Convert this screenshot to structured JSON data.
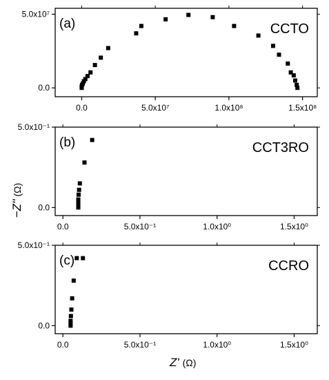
{
  "chart_data": [
    {
      "type": "scatter",
      "panel_label": "(a)",
      "series": [
        {
          "name": "CCTO",
          "x": [
            0.0,
            0.0,
            300000.0,
            800000.0,
            1500000.0,
            2500000.0,
            4000000.0,
            6000000.0,
            9000000.0,
            13000000.0,
            18000000.0,
            37000000.0,
            40500000.0,
            57000000.0,
            72500000.0,
            89000000.0,
            103500000.0,
            120000000.0,
            130000000.0,
            134000000.0,
            140000000.0,
            142000000.0,
            144000000.0,
            145000000.0,
            146000000.0,
            146500000.0
          ],
          "y": [
            0.0,
            1000000.0,
            2000000.0,
            3000000.0,
            4500000.0,
            6000000.0,
            8000000.0,
            10500000.0,
            15500000.0,
            20500000.0,
            27000000.0,
            37000000.0,
            42000000.0,
            46500000.0,
            49500000.0,
            48000000.0,
            42000000.0,
            35500000.0,
            28500000.0,
            22500000.0,
            16500000.0,
            10500000.0,
            8500000.0,
            5000000.0,
            2000000.0,
            0.0
          ]
        }
      ],
      "x_ticks": [
        "0.0",
        "5.0x10⁷",
        "1.0x10⁸",
        "1.5x10⁸"
      ],
      "y_ticks": [
        "0.0",
        "5.0x10⁷"
      ],
      "xlim": [
        -18000000.0,
        160000000.0
      ],
      "ylim": [
        -6000000.0,
        54000000.0
      ]
    },
    {
      "type": "scatter",
      "panel_label": "(b)",
      "series": [
        {
          "name": "CCT3RO",
          "x": [
            0.1,
            0.1,
            0.1,
            0.1,
            0.102,
            0.105,
            0.11,
            0.14,
            0.19
          ],
          "y": [
            0.0,
            0.015,
            0.03,
            0.05,
            0.08,
            0.11,
            0.15,
            0.28,
            0.42
          ],
          "note_zero_cluster": true
        }
      ],
      "x_ticks": [
        "0.0",
        "5.0x10⁻¹",
        "1.0x10⁰",
        "1.5x10⁰"
      ],
      "y_ticks": [
        "0.0",
        "5.0x10⁻¹"
      ],
      "xlim": [
        -0.05,
        1.65
      ],
      "ylim": [
        -0.05,
        0.5
      ]
    },
    {
      "type": "scatter",
      "panel_label": "(c)",
      "series": [
        {
          "name": "CCRO",
          "x": [
            0.05,
            0.05,
            0.05,
            0.052,
            0.055,
            0.06,
            0.07,
            0.09,
            0.13
          ],
          "y": [
            0.0,
            0.015,
            0.03,
            0.06,
            0.1,
            0.17,
            0.28,
            0.42,
            0.42
          ],
          "note_zero_cluster": true
        }
      ],
      "x_ticks": [
        "0.0",
        "5.0x10⁻¹",
        "1.0x10⁰",
        "1.5x10⁰"
      ],
      "y_ticks": [
        "0.0",
        "5.0x10⁻¹"
      ],
      "xlim": [
        -0.05,
        1.65
      ],
      "ylim": [
        -0.05,
        0.5
      ]
    }
  ],
  "shared_labels": {
    "xlabel_symbol": "Z'",
    "xlabel_unit": "(Ω)",
    "ylabel_symbol": "−Z''",
    "ylabel_unit": "(Ω)"
  },
  "tick_values": {
    "a_x": [
      0.0,
      50000000.0,
      100000000.0,
      150000000.0
    ],
    "a_y": [
      0.0,
      50000000.0
    ],
    "bc_x": [
      0.0,
      0.5,
      1.0,
      1.5
    ],
    "bc_y": [
      0.0,
      0.5
    ]
  },
  "colors": {
    "marker": "#000000",
    "axis": "#000000"
  }
}
